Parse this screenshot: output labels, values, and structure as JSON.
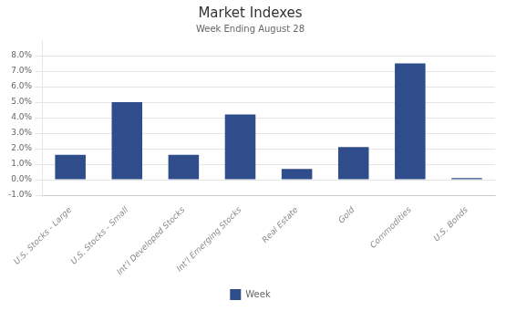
{
  "chart_data": {
    "type": "bar",
    "title": "Market Indexes",
    "subtitle": "Week Ending August 28",
    "categories": [
      "U.S. Stocks - Large",
      "U.S. Stocks - Small",
      "Int’l Developed Stocks",
      "Int’l Emerging Stocks",
      "Real Estate",
      "Gold",
      "Commodities",
      "U.S. Bonds"
    ],
    "series": [
      {
        "name": "Week",
        "color": "#2E4D8A",
        "values": [
          0.016,
          0.05,
          0.016,
          0.042,
          0.007,
          0.021,
          0.075,
          0.001
        ]
      }
    ],
    "ylim": [
      -0.01,
      0.09
    ],
    "yticks": [
      {
        "value": -0.01,
        "label": "-1.0%"
      },
      {
        "value": 0.0,
        "label": "0.0%"
      },
      {
        "value": 0.01,
        "label": "1.0%"
      },
      {
        "value": 0.02,
        "label": "2.0%"
      },
      {
        "value": 0.03,
        "label": "3.0%"
      },
      {
        "value": 0.04,
        "label": "4.0%"
      },
      {
        "value": 0.05,
        "label": "5.0%"
      },
      {
        "value": 0.06,
        "label": "6.0%"
      },
      {
        "value": 0.07,
        "label": "7.0%"
      },
      {
        "value": 0.08,
        "label": "8.0%"
      }
    ],
    "grid": true,
    "legend": "bottom"
  }
}
